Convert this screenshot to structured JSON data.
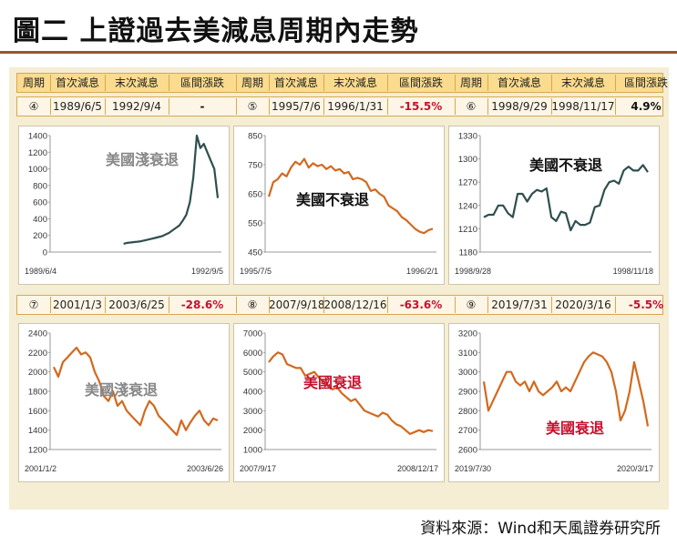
{
  "title": "圖二 上證過去美減息周期內走勢",
  "source": "資料來源：Wind和天風證券研究所",
  "colors": {
    "orange_line": "#d2691e",
    "grey_line": "#2f4f4f",
    "neg_text": "#c8102e",
    "grey_label": "#888888",
    "header_bg": "#fbdb8e"
  },
  "table": {
    "headers": [
      "周期",
      "首次減息",
      "末次減息",
      "區間漲跌",
      "周期",
      "首次減息",
      "末次減息",
      "區間漲跌",
      "周期",
      "首次減息",
      "末次減息",
      "區間漲跌"
    ],
    "row1": [
      {
        "cycle": "④",
        "first": "1989/6/5",
        "last": "1992/9/4",
        "change": "-"
      },
      {
        "cycle": "⑤",
        "first": "1995/7/6",
        "last": "1996/1/31",
        "change": "-15.5%"
      },
      {
        "cycle": "⑥",
        "first": "1998/9/29",
        "last": "1998/11/17",
        "change": "4.9%"
      }
    ],
    "row2": [
      {
        "cycle": "⑦",
        "first": "2001/1/3",
        "last": "2003/6/25",
        "change": "-28.6%"
      },
      {
        "cycle": "⑧",
        "first": "2007/9/18",
        "last": "2008/12/16",
        "change": "-63.6%"
      },
      {
        "cycle": "⑨",
        "first": "2019/7/31",
        "last": "2020/3/16",
        "change": "-5.5%"
      }
    ]
  },
  "chart_data": [
    {
      "type": "line",
      "title": "",
      "annotation": "美國淺衰退",
      "ylim": [
        0,
        1400
      ],
      "yticks": [
        "0",
        "200",
        "400",
        "600",
        "800",
        "1000",
        "1200",
        "1400"
      ],
      "x_start": "1989/6/4",
      "x_end": "1992/9/5",
      "color": "#2f4f4f",
      "annotation_color": "#888888",
      "values": [
        null,
        null,
        null,
        null,
        null,
        null,
        null,
        null,
        null,
        null,
        null,
        null,
        null,
        null,
        null,
        null,
        null,
        null,
        null,
        null,
        100,
        110,
        115,
        120,
        125,
        130,
        140,
        150,
        160,
        170,
        180,
        190,
        210,
        230,
        260,
        290,
        320,
        380,
        450,
        600,
        900,
        1400,
        1250,
        1300,
        1200,
        1100,
        1000,
        650
      ]
    },
    {
      "type": "line",
      "title": "",
      "annotation": "美國不衰退",
      "ylim": [
        450,
        850
      ],
      "yticks": [
        "450",
        "550",
        "650",
        "750",
        "850"
      ],
      "x_start": "1995/7/5",
      "x_end": "1996/2/1",
      "color": "#d2691e",
      "annotation_color": "#111111",
      "values": [
        640,
        690,
        700,
        720,
        710,
        740,
        760,
        750,
        770,
        740,
        755,
        745,
        750,
        735,
        745,
        730,
        735,
        720,
        725,
        700,
        705,
        700,
        690,
        660,
        665,
        650,
        640,
        610,
        600,
        590,
        570,
        560,
        545,
        530,
        520,
        515,
        525,
        530
      ]
    },
    {
      "type": "line",
      "title": "",
      "annotation": "美國不衰退",
      "ylim": [
        1180,
        1330
      ],
      "yticks": [
        "1180",
        "1210",
        "1240",
        "1270",
        "1300",
        "1330"
      ],
      "x_start": "1998/9/28",
      "x_end": "1998/11/18",
      "color": "#2f4f4f",
      "annotation_color": "#111111",
      "values": [
        1225,
        1228,
        1228,
        1240,
        1240,
        1230,
        1225,
        1255,
        1255,
        1245,
        1255,
        1260,
        1258,
        1262,
        1225,
        1220,
        1232,
        1230,
        1208,
        1220,
        1215,
        1215,
        1218,
        1238,
        1240,
        1260,
        1270,
        1272,
        1268,
        1285,
        1290,
        1285,
        1285,
        1292,
        1283
      ]
    },
    {
      "type": "line",
      "title": "",
      "annotation": "美國淺衰退",
      "ylim": [
        1200,
        2400
      ],
      "yticks": [
        "1200",
        "1400",
        "1600",
        "1800",
        "2000",
        "2200",
        "2400"
      ],
      "x_start": "2001/1/2",
      "x_end": "2003/6/26",
      "color": "#d2691e",
      "annotation_color": "#888888",
      "values": [
        2050,
        1950,
        2100,
        2150,
        2200,
        2250,
        2180,
        2200,
        2150,
        2000,
        1900,
        1750,
        1700,
        1800,
        1650,
        1700,
        1600,
        1550,
        1500,
        1450,
        1600,
        1700,
        1650,
        1550,
        1500,
        1450,
        1400,
        1350,
        1500,
        1400,
        1480,
        1550,
        1600,
        1500,
        1450,
        1520,
        1500
      ]
    },
    {
      "type": "line",
      "title": "",
      "annotation": "美國衰退",
      "ylim": [
        1000,
        7000
      ],
      "yticks": [
        "1000",
        "2000",
        "3000",
        "4000",
        "5000",
        "6000",
        "7000"
      ],
      "x_start": "2007/9/17",
      "x_end": "2008/12/17",
      "color": "#d2691e",
      "annotation_color": "#c8102e",
      "values": [
        5500,
        5800,
        6000,
        5900,
        5400,
        5300,
        5200,
        5200,
        4800,
        4900,
        5000,
        4700,
        4500,
        4300,
        4100,
        4200,
        3900,
        3700,
        3500,
        3600,
        3300,
        3000,
        2900,
        2800,
        2700,
        2900,
        2800,
        2500,
        2300,
        2200,
        2000,
        1800,
        1900,
        2000,
        1900,
        2000,
        1950
      ]
    },
    {
      "type": "line",
      "title": "",
      "annotation": "美國衰退",
      "ylim": [
        2600,
        3200
      ],
      "yticks": [
        "2600",
        "2700",
        "2800",
        "2900",
        "3000",
        "3100",
        "3200"
      ],
      "x_start": "2019/7/30",
      "x_end": "2020/3/17",
      "color": "#d2691e",
      "annotation_color": "#c8102e",
      "values": [
        2950,
        2800,
        2850,
        2900,
        2950,
        3000,
        3000,
        2950,
        2930,
        2950,
        2900,
        2950,
        2900,
        2880,
        2900,
        2920,
        2950,
        2900,
        2920,
        2900,
        2950,
        3000,
        3050,
        3080,
        3100,
        3090,
        3080,
        3050,
        3000,
        2900,
        2750,
        2800,
        2900,
        3050,
        2950,
        2850,
        2720
      ]
    }
  ]
}
